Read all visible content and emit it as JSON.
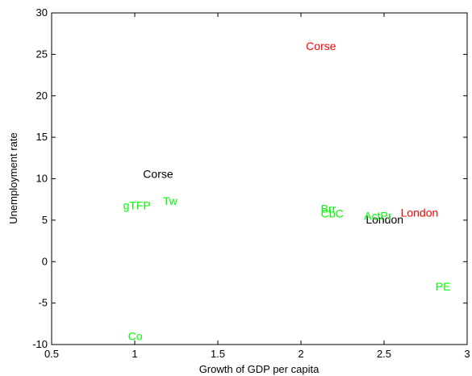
{
  "chart_data": {
    "type": "scatter",
    "xlabel": "Growth of GDP per capita",
    "ylabel": "Unemployment rate",
    "xlim": [
      0.5,
      3
    ],
    "ylim": [
      -10,
      30
    ],
    "xticks": [
      0.5,
      1,
      1.5,
      2,
      2.5,
      3
    ],
    "yticks": [
      -10,
      -5,
      0,
      5,
      10,
      15,
      20,
      25,
      30
    ],
    "grid": false,
    "colors": {
      "red": "#ff0000",
      "green": "#00ff00",
      "black": "#000000"
    },
    "points": [
      {
        "label": "Corse",
        "x": 2.03,
        "y": 26,
        "color": "#ff0000"
      },
      {
        "label": "London",
        "x": 2.6,
        "y": 5.9,
        "color": "#ff0000"
      },
      {
        "label": "Corse",
        "x": 1.05,
        "y": 10.6,
        "color": "#000000"
      },
      {
        "label": "London",
        "x": 2.39,
        "y": 5.1,
        "color": "#000000"
      },
      {
        "label": "gTFP",
        "x": 0.93,
        "y": 6.8,
        "color": "#00ff00"
      },
      {
        "label": "Tw",
        "x": 1.17,
        "y": 7.3,
        "color": "#00ff00"
      },
      {
        "label": "Brr",
        "x": 2.12,
        "y": 6.4,
        "color": "#00ff00"
      },
      {
        "label": "CbC",
        "x": 2.12,
        "y": 5.8,
        "color": "#00ff00"
      },
      {
        "label": "ActPr",
        "x": 2.38,
        "y": 5.5,
        "color": "#00ff00"
      },
      {
        "label": "PE",
        "x": 2.81,
        "y": -3,
        "color": "#00ff00"
      },
      {
        "label": "Co",
        "x": 0.96,
        "y": -9,
        "color": "#00ff00"
      }
    ]
  }
}
